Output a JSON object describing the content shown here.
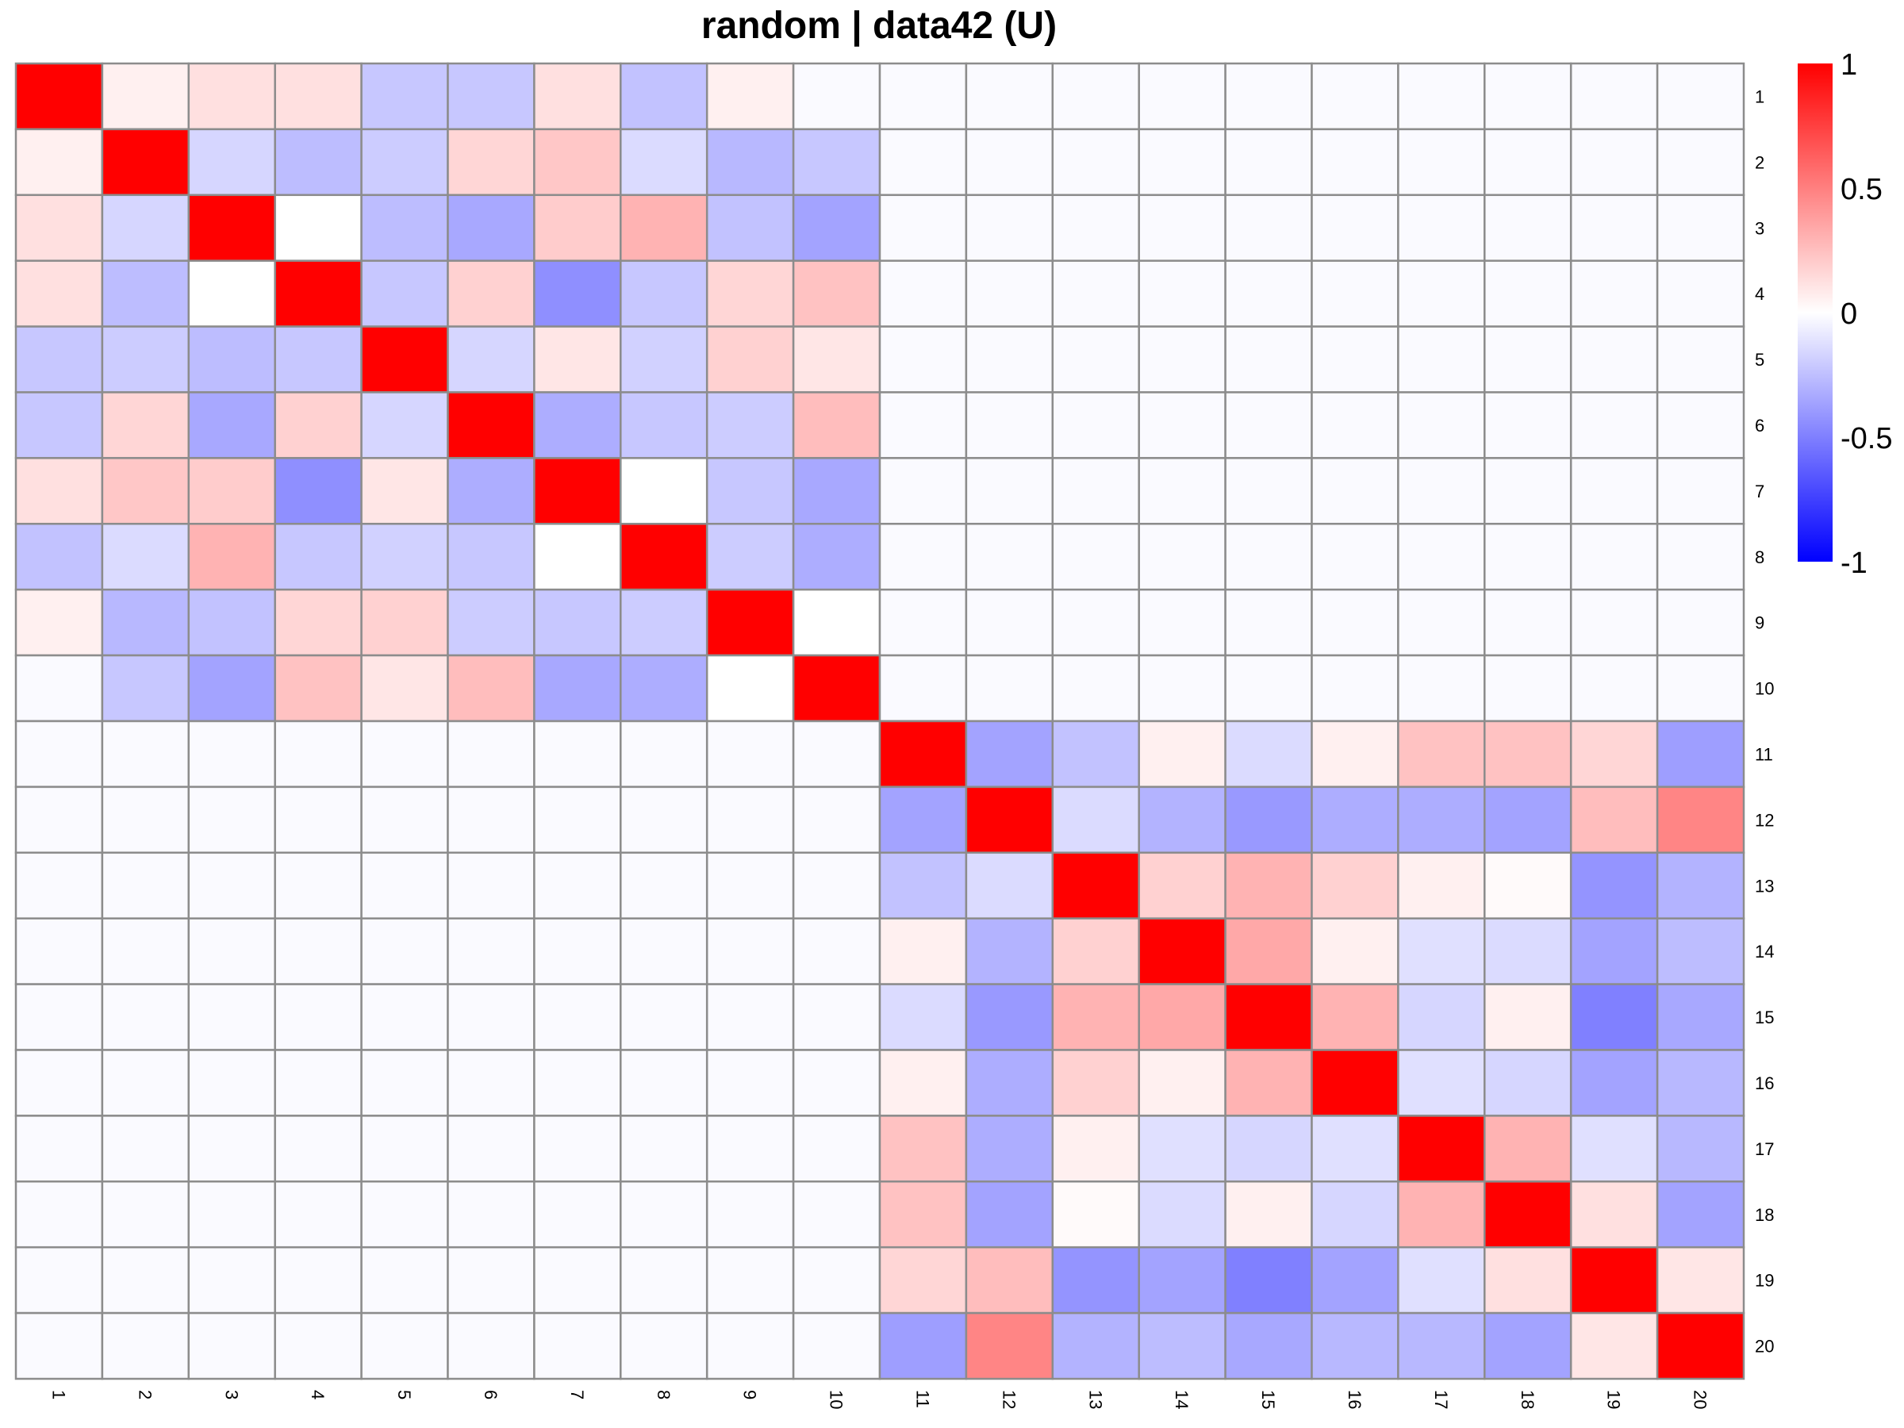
{
  "chart_data": {
    "type": "heatmap",
    "title": "random | data42 (U)",
    "row_labels": [
      "1",
      "2",
      "3",
      "4",
      "5",
      "6",
      "7",
      "8",
      "9",
      "10",
      "11",
      "12",
      "13",
      "14",
      "15",
      "16",
      "17",
      "18",
      "19",
      "20"
    ],
    "col_labels": [
      "1",
      "2",
      "3",
      "4",
      "5",
      "6",
      "7",
      "8",
      "9",
      "10",
      "11",
      "12",
      "13",
      "14",
      "15",
      "16",
      "17",
      "18",
      "19",
      "20"
    ],
    "color_scale": {
      "min": -1,
      "max": 1,
      "low": "#0000FF",
      "mid": "#FFFFFF",
      "high": "#FF0000",
      "ticks": [
        1,
        0.5,
        0,
        -0.5,
        -1
      ],
      "tick_labels": [
        "1",
        "0.5",
        "0",
        "-0.5",
        "-1"
      ]
    },
    "grid": true,
    "grid_color": "#8c8c8c",
    "legend_placement": "right",
    "values": [
      [
        1,
        0.06,
        0.12,
        0.12,
        -0.22,
        -0.22,
        0.12,
        -0.24,
        0.06,
        -0.02,
        -0.02,
        -0.02,
        -0.02,
        -0.02,
        -0.02,
        -0.02,
        -0.02,
        -0.02,
        -0.02,
        -0.02
      ],
      [
        0.06,
        1,
        -0.16,
        -0.26,
        -0.2,
        0.16,
        0.22,
        -0.14,
        -0.28,
        -0.22,
        -0.02,
        -0.02,
        -0.02,
        -0.02,
        -0.02,
        -0.02,
        -0.02,
        -0.02,
        -0.02,
        -0.02
      ],
      [
        0.12,
        -0.16,
        1,
        0,
        -0.26,
        -0.34,
        0.2,
        0.3,
        -0.24,
        -0.36,
        -0.02,
        -0.02,
        -0.02,
        -0.02,
        -0.02,
        -0.02,
        -0.02,
        -0.02,
        -0.02,
        -0.02
      ],
      [
        0.12,
        -0.26,
        0,
        1,
        -0.22,
        0.18,
        -0.44,
        -0.22,
        0.16,
        0.24,
        -0.02,
        -0.02,
        -0.02,
        -0.02,
        -0.02,
        -0.02,
        -0.02,
        -0.02,
        -0.02,
        -0.02
      ],
      [
        -0.22,
        -0.2,
        -0.26,
        -0.22,
        1,
        -0.16,
        0.1,
        -0.18,
        0.18,
        0.1,
        -0.02,
        -0.02,
        -0.02,
        -0.02,
        -0.02,
        -0.02,
        -0.02,
        -0.02,
        -0.02,
        -0.02
      ],
      [
        -0.22,
        0.16,
        -0.34,
        0.18,
        -0.16,
        1,
        -0.32,
        -0.22,
        -0.2,
        0.26,
        -0.02,
        -0.02,
        -0.02,
        -0.02,
        -0.02,
        -0.02,
        -0.02,
        -0.02,
        -0.02,
        -0.02
      ],
      [
        0.12,
        0.22,
        0.2,
        -0.44,
        0.1,
        -0.32,
        1,
        0,
        -0.22,
        -0.34,
        -0.02,
        -0.02,
        -0.02,
        -0.02,
        -0.02,
        -0.02,
        -0.02,
        -0.02,
        -0.02,
        -0.02
      ],
      [
        -0.24,
        -0.14,
        0.3,
        -0.22,
        -0.18,
        -0.22,
        0,
        1,
        -0.2,
        -0.32,
        -0.02,
        -0.02,
        -0.02,
        -0.02,
        -0.02,
        -0.02,
        -0.02,
        -0.02,
        -0.02,
        -0.02
      ],
      [
        0.06,
        -0.28,
        -0.24,
        0.16,
        0.18,
        -0.2,
        -0.22,
        -0.2,
        1,
        0,
        -0.02,
        -0.02,
        -0.02,
        -0.02,
        -0.02,
        -0.02,
        -0.02,
        -0.02,
        -0.02,
        -0.02
      ],
      [
        -0.02,
        -0.22,
        -0.36,
        0.24,
        0.1,
        0.26,
        -0.34,
        -0.32,
        0,
        1,
        -0.02,
        -0.02,
        -0.02,
        -0.02,
        -0.02,
        -0.02,
        -0.02,
        -0.02,
        -0.02,
        -0.02
      ],
      [
        -0.02,
        -0.02,
        -0.02,
        -0.02,
        -0.02,
        -0.02,
        -0.02,
        -0.02,
        -0.02,
        -0.02,
        1,
        -0.36,
        -0.24,
        0.06,
        -0.14,
        0.06,
        0.24,
        0.24,
        0.16,
        -0.38
      ],
      [
        -0.02,
        -0.02,
        -0.02,
        -0.02,
        -0.02,
        -0.02,
        -0.02,
        -0.02,
        -0.02,
        -0.02,
        -0.36,
        1,
        -0.14,
        -0.3,
        -0.4,
        -0.32,
        -0.32,
        -0.36,
        0.26,
        0.48
      ],
      [
        -0.02,
        -0.02,
        -0.02,
        -0.02,
        -0.02,
        -0.02,
        -0.02,
        -0.02,
        -0.02,
        -0.02,
        -0.24,
        -0.14,
        1,
        0.18,
        0.3,
        0.18,
        0.06,
        0.02,
        -0.42,
        -0.3
      ],
      [
        -0.02,
        -0.02,
        -0.02,
        -0.02,
        -0.02,
        -0.02,
        -0.02,
        -0.02,
        -0.02,
        -0.02,
        0.06,
        -0.3,
        0.18,
        1,
        0.34,
        0.06,
        -0.12,
        -0.14,
        -0.36,
        -0.26
      ],
      [
        -0.02,
        -0.02,
        -0.02,
        -0.02,
        -0.02,
        -0.02,
        -0.02,
        -0.02,
        -0.02,
        -0.02,
        -0.14,
        -0.4,
        0.3,
        0.34,
        1,
        0.3,
        -0.16,
        0.06,
        -0.5,
        -0.34
      ],
      [
        -0.02,
        -0.02,
        -0.02,
        -0.02,
        -0.02,
        -0.02,
        -0.02,
        -0.02,
        -0.02,
        -0.02,
        0.06,
        -0.32,
        0.18,
        0.06,
        0.3,
        1,
        -0.12,
        -0.16,
        -0.36,
        -0.28
      ],
      [
        -0.02,
        -0.02,
        -0.02,
        -0.02,
        -0.02,
        -0.02,
        -0.02,
        -0.02,
        -0.02,
        -0.02,
        0.24,
        -0.32,
        0.06,
        -0.12,
        -0.16,
        -0.12,
        1,
        0.3,
        -0.12,
        -0.28
      ],
      [
        -0.02,
        -0.02,
        -0.02,
        -0.02,
        -0.02,
        -0.02,
        -0.02,
        -0.02,
        -0.02,
        -0.02,
        0.24,
        -0.36,
        0.02,
        -0.14,
        0.06,
        -0.16,
        0.3,
        1,
        0.12,
        -0.36
      ],
      [
        -0.02,
        -0.02,
        -0.02,
        -0.02,
        -0.02,
        -0.02,
        -0.02,
        -0.02,
        -0.02,
        -0.02,
        0.16,
        0.26,
        -0.42,
        -0.36,
        -0.5,
        -0.36,
        -0.12,
        0.12,
        1,
        0.1
      ],
      [
        -0.02,
        -0.02,
        -0.02,
        -0.02,
        -0.02,
        -0.02,
        -0.02,
        -0.02,
        -0.02,
        -0.02,
        -0.38,
        0.48,
        -0.3,
        -0.26,
        -0.34,
        -0.28,
        -0.28,
        -0.36,
        0.1,
        1
      ]
    ]
  }
}
